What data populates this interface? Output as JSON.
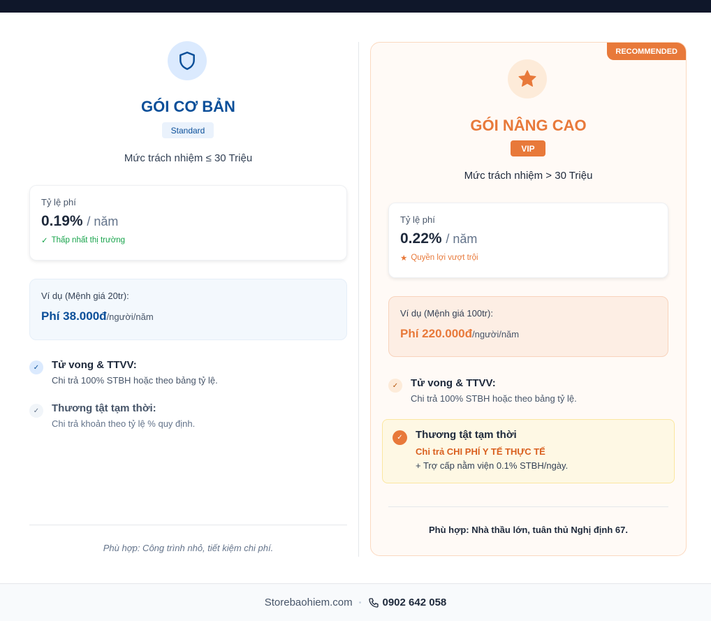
{
  "basic": {
    "title": "GÓI CƠ BẢN",
    "badge": "Standard",
    "responsibility": "Mức trách nhiệm ≤ 30 Triệu",
    "rate_label": "Tỷ lệ phí",
    "rate_value": "0.19%",
    "rate_unit": "/ năm",
    "rate_note": "Thấp nhất thị trường",
    "example_label": "Ví dụ (Mệnh giá 20tr):",
    "example_fee": "Phí 38.000đ",
    "example_unit": "/người/năm",
    "features": [
      {
        "title": "Tử vong & TTVV:",
        "desc": "Chi trả 100% STBH hoặc theo bảng tỷ lệ."
      },
      {
        "title": "Thương tật tạm thời:",
        "desc": "Chi trả khoản theo tỷ lệ % quy định."
      }
    ],
    "suitable": "Phù hợp: Công trình nhỏ, tiết kiệm chi phí.",
    "accent": "#0b4f99"
  },
  "advanced": {
    "ribbon": "RECOMMENDED",
    "title": "GÓI NÂNG CAO",
    "badge": "VIP",
    "responsibility": "Mức trách nhiệm > 30 Triệu",
    "rate_label": "Tỷ lệ phí",
    "rate_value": "0.22%",
    "rate_unit": "/ năm",
    "rate_note": "Quyền lợi vượt trội",
    "example_label": "Ví dụ (Mệnh giá 100tr):",
    "example_fee": "Phí 220.000đ",
    "example_unit": "/người/năm",
    "features": [
      {
        "title": "Tử vong & TTVV:",
        "desc": "Chi trả 100% STBH hoặc theo bảng tỷ lệ."
      }
    ],
    "highlight": {
      "title": "Thương tật tạm thời",
      "line1": "Chi trả CHI PHÍ Y TẾ THỰC TẾ",
      "line2": "+ Trợ cấp nằm viện 0.1% STBH/ngày."
    },
    "suitable": "Phù hợp: Nhà thầu lớn, tuân thủ Nghị định 67.",
    "accent": "#e8793a"
  },
  "footer": {
    "site": "Storebaohiem.com",
    "separator": "•",
    "phone": "0902 642 058"
  }
}
